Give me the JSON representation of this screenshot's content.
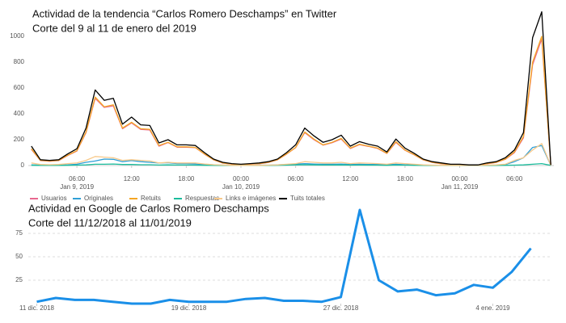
{
  "chart_data": [
    {
      "type": "line",
      "title": "Actividad de la tendencia “Carlos Romero Deschamps” en Twitter",
      "subtitle": "Corte del 9 al 11 de enero del 2019",
      "x": [
        "2019-01-09T01:00",
        "2019-01-09T02:00",
        "2019-01-09T03:00",
        "2019-01-09T04:00",
        "2019-01-09T05:00",
        "2019-01-09T06:00",
        "2019-01-09T07:00",
        "2019-01-09T08:00",
        "2019-01-09T09:00",
        "2019-01-09T10:00",
        "2019-01-09T11:00",
        "2019-01-09T12:00",
        "2019-01-09T13:00",
        "2019-01-09T14:00",
        "2019-01-09T15:00",
        "2019-01-09T16:00",
        "2019-01-09T17:00",
        "2019-01-09T18:00",
        "2019-01-09T19:00",
        "2019-01-09T20:00",
        "2019-01-09T21:00",
        "2019-01-09T22:00",
        "2019-01-09T23:00",
        "2019-01-10T00:00",
        "2019-01-10T01:00",
        "2019-01-10T02:00",
        "2019-01-10T03:00",
        "2019-01-10T04:00",
        "2019-01-10T05:00",
        "2019-01-10T06:00",
        "2019-01-10T07:00",
        "2019-01-10T08:00",
        "2019-01-10T09:00",
        "2019-01-10T10:00",
        "2019-01-10T11:00",
        "2019-01-10T12:00",
        "2019-01-10T13:00",
        "2019-01-10T14:00",
        "2019-01-10T15:00",
        "2019-01-10T16:00",
        "2019-01-10T17:00",
        "2019-01-10T18:00",
        "2019-01-10T19:00",
        "2019-01-10T20:00",
        "2019-01-10T21:00",
        "2019-01-10T22:00",
        "2019-01-10T23:00",
        "2019-01-11T00:00",
        "2019-01-11T01:00",
        "2019-01-11T02:00",
        "2019-01-11T03:00",
        "2019-01-11T04:00",
        "2019-01-11T05:00",
        "2019-01-11T06:00",
        "2019-01-11T07:00",
        "2019-01-11T08:00",
        "2019-01-11T09:00",
        "2019-01-11T10:00"
      ],
      "series": [
        {
          "name": "Usuarios",
          "color": "#e8678f",
          "values": [
            125,
            38,
            33,
            38,
            78,
            112,
            255,
            520,
            450,
            462,
            285,
            330,
            280,
            275,
            150,
            178,
            142,
            142,
            138,
            88,
            44,
            19,
            11,
            8,
            11,
            14,
            24,
            44,
            88,
            138,
            255,
            200,
            158,
            176,
            205,
            132,
            162,
            148,
            132,
            93,
            180,
            118,
            83,
            44,
            24,
            14,
            7,
            7,
            4,
            4,
            14,
            24,
            48,
            100,
            215,
            780,
            980,
            3
          ]
        },
        {
          "name": "Originales",
          "color": "#2f9fd6",
          "values": [
            5,
            3,
            3,
            3,
            5,
            10,
            25,
            35,
            50,
            48,
            30,
            38,
            30,
            25,
            20,
            22,
            15,
            15,
            12,
            8,
            5,
            3,
            2,
            2,
            2,
            3,
            3,
            5,
            8,
            12,
            15,
            12,
            10,
            10,
            12,
            8,
            10,
            8,
            8,
            6,
            10,
            6,
            5,
            3,
            2,
            2,
            1,
            1,
            1,
            1,
            2,
            3,
            8,
            30,
            60,
            140,
            155,
            2
          ]
        },
        {
          "name": "Retuits",
          "color": "#f5a623",
          "values": [
            130,
            40,
            35,
            40,
            80,
            115,
            260,
            530,
            455,
            470,
            290,
            335,
            285,
            280,
            155,
            180,
            145,
            145,
            140,
            90,
            45,
            20,
            12,
            8,
            12,
            15,
            25,
            45,
            90,
            140,
            260,
            205,
            160,
            180,
            210,
            135,
            165,
            150,
            135,
            95,
            185,
            120,
            85,
            45,
            25,
            15,
            8,
            8,
            4,
            4,
            15,
            25,
            50,
            105,
            225,
            800,
            1000,
            3
          ]
        },
        {
          "name": "Respuestas",
          "color": "#1abc9c",
          "values": [
            2,
            1,
            1,
            1,
            2,
            3,
            5,
            10,
            10,
            12,
            8,
            8,
            6,
            6,
            4,
            5,
            4,
            4,
            3,
            2,
            1,
            1,
            1,
            1,
            1,
            1,
            1,
            2,
            3,
            5,
            6,
            5,
            4,
            4,
            5,
            3,
            4,
            3,
            3,
            2,
            4,
            3,
            2,
            1,
            1,
            1,
            0,
            0,
            0,
            0,
            1,
            1,
            2,
            3,
            5,
            10,
            15,
            1
          ]
        },
        {
          "name": "Links e imágenes",
          "color": "#f8c98a",
          "values": [
            20,
            8,
            6,
            8,
            15,
            20,
            40,
            70,
            65,
            60,
            40,
            45,
            40,
            35,
            20,
            25,
            20,
            20,
            20,
            12,
            6,
            4,
            2,
            1,
            2,
            2,
            3,
            5,
            10,
            15,
            30,
            25,
            20,
            20,
            25,
            15,
            20,
            18,
            15,
            10,
            20,
            15,
            10,
            5,
            3,
            2,
            1,
            1,
            1,
            1,
            3,
            5,
            10,
            40,
            60,
            120,
            170,
            2
          ]
        },
        {
          "name": "Tuits totales",
          "color": "#000000",
          "values": [
            150,
            45,
            40,
            45,
            90,
            130,
            290,
            585,
            505,
            520,
            320,
            375,
            315,
            310,
            175,
            200,
            160,
            160,
            155,
            100,
            50,
            25,
            15,
            10,
            15,
            20,
            30,
            50,
            100,
            160,
            290,
            230,
            180,
            200,
            235,
            150,
            185,
            165,
            150,
            105,
            205,
            135,
            95,
            50,
            30,
            20,
            10,
            10,
            5,
            5,
            20,
            30,
            60,
            120,
            255,
            990,
            1190,
            5
          ]
        }
      ],
      "xlim": [
        "2019-01-09T00:40",
        "2019-01-11T10:20"
      ],
      "xticks": [
        {
          "value": "2019-01-09T06:00",
          "label": "06:00\nJan 9, 2019"
        },
        {
          "value": "2019-01-09T12:00",
          "label": "12:00"
        },
        {
          "value": "2019-01-09T18:00",
          "label": "18:00"
        },
        {
          "value": "2019-01-10T00:00",
          "label": "00:00\nJan 10, 2019"
        },
        {
          "value": "2019-01-10T06:00",
          "label": "06:00"
        },
        {
          "value": "2019-01-10T12:00",
          "label": "12:00"
        },
        {
          "value": "2019-01-10T18:00",
          "label": "18:00"
        },
        {
          "value": "2019-01-11T00:00",
          "label": "00:00\nJan 11, 2019"
        },
        {
          "value": "2019-01-11T06:00",
          "label": "06:00"
        }
      ],
      "ylim": [
        0,
        1200
      ],
      "yticks": [
        0,
        200,
        400,
        600,
        800,
        1000
      ],
      "grid": false,
      "legend": "bottom"
    },
    {
      "type": "line",
      "title": "Actividad en Google de Carlos Romero Deschamps",
      "subtitle": "Corte del 11/12/2018 al 11/01/2019",
      "x": [
        "2018-12-11",
        "2018-12-12",
        "2018-12-13",
        "2018-12-14",
        "2018-12-15",
        "2018-12-16",
        "2018-12-17",
        "2018-12-18",
        "2018-12-19",
        "2018-12-20",
        "2018-12-21",
        "2018-12-22",
        "2018-12-23",
        "2018-12-24",
        "2018-12-25",
        "2018-12-26",
        "2018-12-27",
        "2018-12-28",
        "2018-12-29",
        "2018-12-30",
        "2018-12-31",
        "2019-01-01",
        "2019-01-02",
        "2019-01-03",
        "2019-01-04",
        "2019-01-05",
        "2019-01-06"
      ],
      "values": [
        2,
        6,
        4,
        4,
        2,
        0,
        0,
        4,
        2,
        2,
        2,
        5,
        6,
        3,
        3,
        2,
        7,
        100,
        25,
        13,
        15,
        9,
        11,
        20,
        17,
        34,
        59
      ],
      "color": "#1a8fe8",
      "xlim": [
        "2018-12-10",
        "2019-01-07"
      ],
      "xticks": [
        {
          "value": "2018-12-11",
          "label": "11 dic. 2018"
        },
        {
          "value": "2018-12-19",
          "label": "19 dic. 2018"
        },
        {
          "value": "2018-12-27",
          "label": "27 dic. 2018"
        },
        {
          "value": "2019-01-04",
          "label": "4 ene. 2019"
        }
      ],
      "ylim": [
        0,
        100
      ],
      "yticks": [
        25,
        50,
        75
      ],
      "grid": true
    }
  ]
}
